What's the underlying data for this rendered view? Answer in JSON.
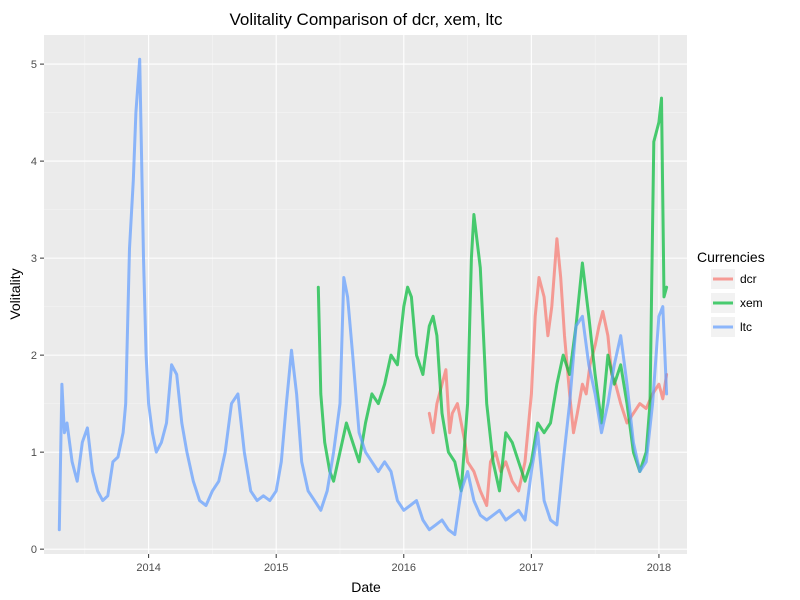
{
  "chart_data": {
    "type": "line",
    "title": "Volitality Comparison of dcr, xem, ltc",
    "xlabel": "Date",
    "ylabel": "Volitality",
    "xlim": [
      2013.18,
      2018.22
    ],
    "ylim": [
      -0.05,
      5.3
    ],
    "x_ticks": [
      2014,
      2015,
      2016,
      2017,
      2018
    ],
    "x_tick_labels": [
      "2014",
      "2015",
      "2016",
      "2017",
      "2018"
    ],
    "y_ticks": [
      0,
      1,
      2,
      3,
      4,
      5
    ],
    "y_tick_labels": [
      "0",
      "1",
      "2",
      "3",
      "4",
      "5"
    ],
    "grid": true,
    "legend": {
      "title": "Currencies",
      "placement": "right"
    },
    "series": [
      {
        "name": "dcr",
        "color": "#F8766D",
        "x": [
          2016.2,
          2016.23,
          2016.26,
          2016.3,
          2016.33,
          2016.36,
          2016.38,
          2016.42,
          2016.45,
          2016.48,
          2016.5,
          2016.55,
          2016.6,
          2016.65,
          2016.68,
          2016.72,
          2016.76,
          2016.8,
          2016.85,
          2016.9,
          2016.95,
          2017.0,
          2017.03,
          2017.06,
          2017.1,
          2017.13,
          2017.16,
          2017.2,
          2017.23,
          2017.26,
          2017.3,
          2017.33,
          2017.36,
          2017.4,
          2017.43,
          2017.46,
          2017.5,
          2017.53,
          2017.56,
          2017.6,
          2017.63,
          2017.66,
          2017.7,
          2017.75,
          2017.8,
          2017.85,
          2017.9,
          2017.95,
          2018.0,
          2018.03,
          2018.06
        ],
        "y": [
          1.4,
          1.2,
          1.5,
          1.7,
          1.85,
          1.2,
          1.4,
          1.5,
          1.3,
          1.1,
          0.9,
          0.8,
          0.6,
          0.45,
          0.9,
          1.0,
          0.8,
          0.9,
          0.7,
          0.6,
          0.9,
          1.6,
          2.4,
          2.8,
          2.6,
          2.2,
          2.5,
          3.2,
          2.8,
          2.2,
          1.6,
          1.2,
          1.4,
          1.7,
          1.6,
          1.9,
          2.1,
          2.3,
          2.45,
          2.2,
          1.8,
          1.7,
          1.5,
          1.3,
          1.4,
          1.5,
          1.45,
          1.6,
          1.7,
          1.55,
          1.8
        ]
      },
      {
        "name": "xem",
        "color": "#00BA38",
        "x": [
          2015.33,
          2015.35,
          2015.38,
          2015.42,
          2015.45,
          2015.5,
          2015.55,
          2015.6,
          2015.65,
          2015.7,
          2015.75,
          2015.8,
          2015.85,
          2015.9,
          2015.95,
          2016.0,
          2016.03,
          2016.06,
          2016.1,
          2016.15,
          2016.2,
          2016.23,
          2016.26,
          2016.3,
          2016.35,
          2016.4,
          2016.45,
          2016.5,
          2016.53,
          2016.55,
          2016.6,
          2016.65,
          2016.7,
          2016.75,
          2016.8,
          2016.85,
          2016.9,
          2016.95,
          2017.0,
          2017.05,
          2017.1,
          2017.15,
          2017.2,
          2017.25,
          2017.3,
          2017.35,
          2017.4,
          2017.45,
          2017.5,
          2017.55,
          2017.6,
          2017.65,
          2017.7,
          2017.75,
          2017.8,
          2017.85,
          2017.9,
          2017.93,
          2017.96,
          2018.0,
          2018.02,
          2018.04,
          2018.06
        ],
        "y": [
          2.7,
          1.6,
          1.1,
          0.8,
          0.7,
          1.0,
          1.3,
          1.1,
          0.9,
          1.3,
          1.6,
          1.5,
          1.7,
          2.0,
          1.9,
          2.5,
          2.7,
          2.6,
          2.0,
          1.8,
          2.3,
          2.4,
          2.2,
          1.4,
          1.0,
          0.9,
          0.6,
          1.5,
          3.0,
          3.45,
          2.9,
          1.5,
          0.9,
          0.6,
          1.2,
          1.1,
          0.9,
          0.7,
          0.9,
          1.3,
          1.2,
          1.3,
          1.7,
          2.0,
          1.8,
          2.3,
          2.95,
          2.4,
          1.8,
          1.3,
          2.0,
          1.7,
          1.9,
          1.5,
          1.0,
          0.8,
          1.0,
          1.5,
          4.2,
          4.4,
          4.65,
          2.6,
          2.7
        ]
      },
      {
        "name": "ltc",
        "color": "#619CFF",
        "x": [
          2013.3,
          2013.32,
          2013.34,
          2013.36,
          2013.4,
          2013.44,
          2013.48,
          2013.52,
          2013.56,
          2013.6,
          2013.64,
          2013.68,
          2013.72,
          2013.76,
          2013.8,
          2013.82,
          2013.85,
          2013.88,
          2013.9,
          2013.93,
          2013.96,
          2013.98,
          2014.0,
          2014.03,
          2014.06,
          2014.1,
          2014.14,
          2014.18,
          2014.22,
          2014.26,
          2014.3,
          2014.35,
          2014.4,
          2014.45,
          2014.5,
          2014.55,
          2014.6,
          2014.65,
          2014.7,
          2014.75,
          2014.8,
          2014.85,
          2014.9,
          2014.95,
          2015.0,
          2015.04,
          2015.08,
          2015.12,
          2015.16,
          2015.2,
          2015.25,
          2015.3,
          2015.35,
          2015.4,
          2015.45,
          2015.5,
          2015.53,
          2015.56,
          2015.6,
          2015.65,
          2015.7,
          2015.75,
          2015.8,
          2015.85,
          2015.9,
          2015.95,
          2016.0,
          2016.05,
          2016.1,
          2016.15,
          2016.2,
          2016.25,
          2016.3,
          2016.35,
          2016.4,
          2016.45,
          2016.5,
          2016.55,
          2016.6,
          2016.65,
          2016.7,
          2016.75,
          2016.8,
          2016.85,
          2016.9,
          2016.95,
          2017.0,
          2017.05,
          2017.1,
          2017.15,
          2017.2,
          2017.25,
          2017.3,
          2017.35,
          2017.4,
          2017.45,
          2017.5,
          2017.55,
          2017.6,
          2017.65,
          2017.7,
          2017.75,
          2017.8,
          2017.85,
          2017.9,
          2017.95,
          2018.0,
          2018.03,
          2018.06
        ],
        "y": [
          0.2,
          1.7,
          1.2,
          1.3,
          0.9,
          0.7,
          1.1,
          1.25,
          0.8,
          0.6,
          0.5,
          0.55,
          0.9,
          0.95,
          1.2,
          1.5,
          3.1,
          3.8,
          4.5,
          5.05,
          3.0,
          2.0,
          1.5,
          1.2,
          1.0,
          1.1,
          1.3,
          1.9,
          1.8,
          1.3,
          1.0,
          0.7,
          0.5,
          0.45,
          0.6,
          0.7,
          1.0,
          1.5,
          1.6,
          1.0,
          0.6,
          0.5,
          0.55,
          0.5,
          0.6,
          0.9,
          1.5,
          2.05,
          1.6,
          0.9,
          0.6,
          0.5,
          0.4,
          0.6,
          1.0,
          1.5,
          2.8,
          2.6,
          2.0,
          1.2,
          1.0,
          0.9,
          0.8,
          0.9,
          0.8,
          0.5,
          0.4,
          0.45,
          0.5,
          0.3,
          0.2,
          0.25,
          0.3,
          0.2,
          0.15,
          0.6,
          0.8,
          0.5,
          0.35,
          0.3,
          0.35,
          0.4,
          0.3,
          0.35,
          0.4,
          0.3,
          0.8,
          1.2,
          0.5,
          0.3,
          0.25,
          0.9,
          1.5,
          2.3,
          2.4,
          1.9,
          1.6,
          1.2,
          1.5,
          1.9,
          2.2,
          1.7,
          1.1,
          0.8,
          0.9,
          1.5,
          2.4,
          2.5,
          1.6
        ]
      }
    ]
  }
}
